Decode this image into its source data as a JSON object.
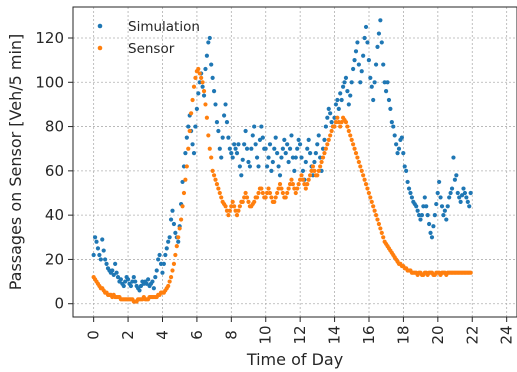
{
  "chart_data": {
    "type": "scatter",
    "xlabel": "Time of Day",
    "ylabel": "Passages on Sensor [Veh/5 min]",
    "xlim": [
      -1.2,
      24.6
    ],
    "ylim": [
      -6,
      134
    ],
    "xticks": [
      0,
      2,
      4,
      6,
      8,
      10,
      12,
      14,
      16,
      18,
      20,
      22,
      24
    ],
    "yticks": [
      0,
      20,
      40,
      60,
      80,
      100,
      120
    ],
    "grid": true,
    "legend_position": "top-left",
    "sample_interval_hours": 0.0833,
    "series": [
      {
        "name": "Simulation",
        "color": "#1f77b4",
        "start_x": 0,
        "values": [
          22,
          30,
          28,
          25,
          22,
          20,
          29,
          24,
          20,
          18,
          16,
          15,
          14,
          15,
          13,
          18,
          14,
          12,
          10,
          11,
          9,
          8,
          10,
          12,
          11,
          9,
          8,
          10,
          12,
          10,
          8,
          7,
          6,
          8,
          10,
          9,
          10,
          9,
          11,
          8,
          9,
          10,
          7,
          12,
          15,
          20,
          22,
          18,
          14,
          18,
          22,
          25,
          28,
          30,
          38,
          42,
          36,
          32,
          30,
          28,
          35,
          45,
          55,
          62,
          68,
          75,
          80,
          85,
          78,
          72,
          68,
          80,
          88,
          95,
          100,
          104,
          98,
          94,
          106,
          112,
          118,
          120,
          108,
          102,
          96,
          90,
          82,
          78,
          70,
          66,
          75,
          85,
          90,
          82,
          75,
          70,
          68,
          66,
          72,
          70,
          68,
          72,
          62,
          58,
          65,
          72,
          78,
          70,
          64,
          62,
          70,
          76,
          80,
          72,
          66,
          62,
          74,
          80,
          75,
          70,
          70,
          62,
          66,
          72,
          60,
          64,
          70,
          75,
          68,
          62,
          58,
          66,
          70,
          74,
          68,
          72,
          64,
          70,
          76,
          66,
          60,
          66,
          70,
          74,
          72,
          66,
          60,
          56,
          64,
          70,
          74,
          68,
          62,
          58,
          64,
          68,
          72,
          76,
          66,
          60,
          70,
          74,
          80,
          84,
          88,
          86,
          82,
          80,
          84,
          90,
          92,
          88,
          95,
          92,
          98,
          100,
          102,
          96,
          90,
          94,
          100,
          106,
          110,
          114,
          118,
          108,
          100,
          105,
          112,
          120,
          125,
          118,
          110,
          102,
          98,
          92,
          100,
          108,
          116,
          122,
          128,
          118,
          108,
          100,
          96,
          100,
          92,
          88,
          82,
          80,
          76,
          72,
          68,
          70,
          74,
          75,
          68,
          62,
          60,
          55,
          52,
          50,
          48,
          46,
          45,
          44,
          42,
          40,
          38,
          40,
          44,
          48,
          44,
          40,
          36,
          32,
          30,
          35,
          40,
          45,
          50,
          55,
          48,
          44,
          40,
          42,
          38,
          44,
          48,
          50,
          52,
          66,
          56,
          58,
          50,
          48,
          46,
          49,
          52,
          50,
          48,
          46,
          44,
          50
        ]
      },
      {
        "name": "Sensor",
        "color": "#ff7f0e",
        "start_x": 0,
        "values": [
          12,
          11,
          10,
          9,
          8,
          7,
          7,
          6,
          5,
          5,
          4,
          4,
          4,
          3,
          4,
          3,
          3,
          3,
          3,
          2,
          2,
          2,
          2,
          2,
          2,
          2,
          2,
          2,
          1,
          1,
          1,
          2,
          2,
          2,
          2,
          3,
          2,
          2,
          2,
          3,
          3,
          3,
          3,
          3,
          3,
          4,
          4,
          5,
          5,
          5,
          6,
          7,
          8,
          10,
          12,
          15,
          18,
          22,
          26,
          30,
          34,
          38,
          44,
          50,
          56,
          62,
          70,
          78,
          86,
          92,
          98,
          102,
          105,
          106,
          104,
          102,
          100,
          96,
          90,
          84,
          76,
          70,
          66,
          60,
          58,
          56,
          54,
          52,
          50,
          48,
          46,
          45,
          44,
          42,
          40,
          42,
          44,
          46,
          44,
          42,
          40,
          42,
          44,
          46,
          46,
          48,
          50,
          48,
          46,
          44,
          44,
          45,
          46,
          48,
          48,
          50,
          52,
          52,
          50,
          48,
          48,
          50,
          52,
          50,
          48,
          46,
          46,
          48,
          50,
          52,
          54,
          52,
          50,
          48,
          48,
          50,
          52,
          54,
          56,
          54,
          52,
          50,
          52,
          54,
          56,
          58,
          56,
          54,
          52,
          54,
          56,
          58,
          60,
          62,
          60,
          58,
          58,
          60,
          62,
          64,
          66,
          68,
          70,
          72,
          74,
          76,
          78,
          80,
          80,
          82,
          84,
          82,
          80,
          82,
          84,
          83,
          82,
          80,
          78,
          76,
          74,
          72,
          70,
          68,
          66,
          64,
          62,
          60,
          58,
          56,
          54,
          52,
          50,
          48,
          46,
          44,
          42,
          40,
          38,
          36,
          34,
          32,
          30,
          28,
          27,
          26,
          25,
          24,
          23,
          22,
          21,
          20,
          19,
          18,
          18,
          17,
          17,
          16,
          16,
          15,
          15,
          15,
          14,
          14,
          14,
          14,
          13,
          14,
          14,
          13,
          13,
          14,
          14,
          13,
          14,
          14,
          14,
          13,
          13,
          14,
          14,
          14,
          13,
          14,
          14,
          14,
          13,
          14,
          14,
          14,
          14,
          14,
          14,
          14,
          14,
          14,
          14,
          14,
          14,
          14,
          14,
          14,
          14,
          14
        ]
      }
    ]
  }
}
